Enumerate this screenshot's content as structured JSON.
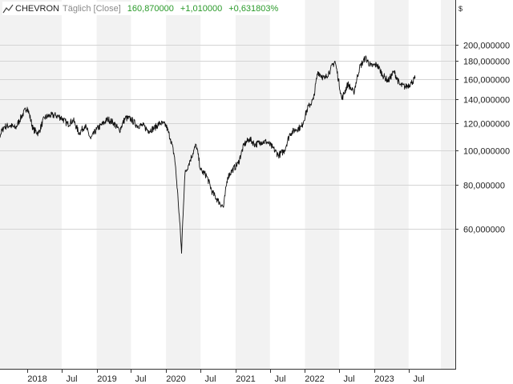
{
  "header": {
    "symbol": "CHEVRON",
    "period": "Täglich [Close]",
    "last": "160,870000",
    "change": "+1,010000",
    "change_pct": "+0,631803%"
  },
  "currency": "$",
  "colors": {
    "band": "#f2f2f2",
    "grid": "#d4d4d4",
    "line": "#111111",
    "positive": "#2a9a2a"
  },
  "chart_data": {
    "type": "line",
    "title": "CHEVRON",
    "ylabel": "$",
    "yscale": "log",
    "ylim": [
      50,
      220
    ],
    "xlim": [
      "2017-06-01",
      "2023-10-15"
    ],
    "grid": true,
    "y_ticks": [
      {
        "value": 60,
        "label": "60,000000"
      },
      {
        "value": 80,
        "label": "80,000000"
      },
      {
        "value": 100,
        "label": "100,000000"
      },
      {
        "value": 120,
        "label": "120,000000"
      },
      {
        "value": 140,
        "label": "140,000000"
      },
      {
        "value": 160,
        "label": "160,000000"
      },
      {
        "value": 180,
        "label": "180,000000"
      },
      {
        "value": 200,
        "label": "200,000000"
      }
    ],
    "x_ticks": [
      {
        "date": "2018-01-01",
        "label": "2018"
      },
      {
        "date": "2018-07-01",
        "label": "Jul"
      },
      {
        "date": "2019-01-01",
        "label": "2019"
      },
      {
        "date": "2019-07-01",
        "label": "Jul"
      },
      {
        "date": "2020-01-01",
        "label": "2020"
      },
      {
        "date": "2020-07-01",
        "label": "Jul"
      },
      {
        "date": "2021-01-01",
        "label": "2021"
      },
      {
        "date": "2021-07-01",
        "label": "Jul"
      },
      {
        "date": "2022-01-01",
        "label": "2022"
      },
      {
        "date": "2022-07-01",
        "label": "Jul"
      },
      {
        "date": "2023-01-01",
        "label": "2023"
      },
      {
        "date": "2023-07-01",
        "label": "Jul"
      }
    ],
    "series": [
      {
        "name": "CHEVRON",
        "points": [
          [
            "2017-06-01",
            104
          ],
          [
            "2017-07-01",
            110
          ],
          [
            "2017-08-01",
            108
          ],
          [
            "2017-09-01",
            117
          ],
          [
            "2017-10-01",
            118
          ],
          [
            "2017-11-01",
            116
          ],
          [
            "2017-12-01",
            125
          ],
          [
            "2018-01-01",
            133
          ],
          [
            "2018-02-01",
            115
          ],
          [
            "2018-03-01",
            112
          ],
          [
            "2018-04-01",
            124
          ],
          [
            "2018-05-01",
            126
          ],
          [
            "2018-06-01",
            126
          ],
          [
            "2018-07-01",
            124
          ],
          [
            "2018-08-01",
            119
          ],
          [
            "2018-09-01",
            122
          ],
          [
            "2018-10-01",
            112
          ],
          [
            "2018-11-01",
            118
          ],
          [
            "2018-12-01",
            108
          ],
          [
            "2019-01-01",
            115
          ],
          [
            "2019-02-01",
            119
          ],
          [
            "2019-03-01",
            123
          ],
          [
            "2019-04-01",
            120
          ],
          [
            "2019-05-01",
            114
          ],
          [
            "2019-06-01",
            124
          ],
          [
            "2019-07-01",
            123
          ],
          [
            "2019-08-01",
            118
          ],
          [
            "2019-09-01",
            118
          ],
          [
            "2019-10-01",
            114
          ],
          [
            "2019-11-01",
            116
          ],
          [
            "2019-12-01",
            120
          ],
          [
            "2020-01-01",
            118
          ],
          [
            "2020-01-25",
            108
          ],
          [
            "2020-02-15",
            96
          ],
          [
            "2020-03-05",
            72
          ],
          [
            "2020-03-23",
            51
          ],
          [
            "2020-04-10",
            86
          ],
          [
            "2020-05-01",
            92
          ],
          [
            "2020-06-08",
            104
          ],
          [
            "2020-07-01",
            88
          ],
          [
            "2020-08-01",
            85
          ],
          [
            "2020-09-01",
            76
          ],
          [
            "2020-10-01",
            72
          ],
          [
            "2020-10-30",
            69
          ],
          [
            "2020-11-20",
            84
          ],
          [
            "2020-12-15",
            88
          ],
          [
            "2021-01-15",
            92
          ],
          [
            "2021-02-15",
            104
          ],
          [
            "2021-03-15",
            108
          ],
          [
            "2021-04-15",
            104
          ],
          [
            "2021-05-15",
            106
          ],
          [
            "2021-06-15",
            106
          ],
          [
            "2021-07-15",
            102
          ],
          [
            "2021-08-15",
            97
          ],
          [
            "2021-09-15",
            100
          ],
          [
            "2021-10-15",
            112
          ],
          [
            "2021-11-15",
            115
          ],
          [
            "2021-12-15",
            117
          ],
          [
            "2022-01-15",
            132
          ],
          [
            "2022-02-15",
            140
          ],
          [
            "2022-03-10",
            168
          ],
          [
            "2022-04-15",
            160
          ],
          [
            "2022-05-15",
            170
          ],
          [
            "2022-06-08",
            180
          ],
          [
            "2022-07-14",
            140
          ],
          [
            "2022-08-15",
            155
          ],
          [
            "2022-09-15",
            146
          ],
          [
            "2022-10-15",
            172
          ],
          [
            "2022-11-15",
            184
          ],
          [
            "2022-12-15",
            174
          ],
          [
            "2023-01-15",
            176
          ],
          [
            "2023-02-15",
            164
          ],
          [
            "2023-03-15",
            158
          ],
          [
            "2023-04-15",
            168
          ],
          [
            "2023-05-15",
            154
          ],
          [
            "2023-06-15",
            152
          ],
          [
            "2023-07-15",
            156
          ],
          [
            "2023-08-04",
            160.87
          ]
        ]
      }
    ]
  }
}
